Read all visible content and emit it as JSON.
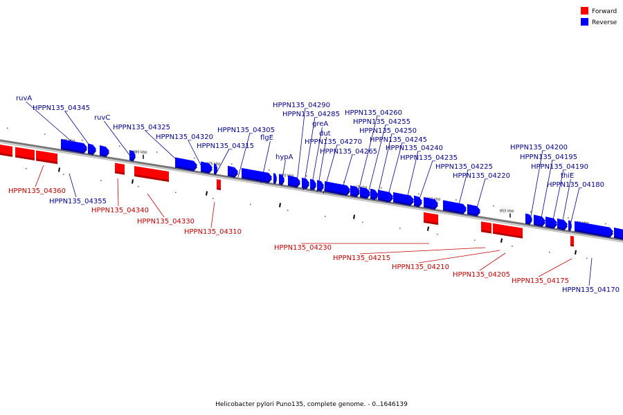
{
  "title": "Helicobacter pylori Puno135, complete genome. - 0..1646139",
  "colors": {
    "forward": "#ff0000",
    "forward_dark": "#b00000",
    "reverse": "#0000ff",
    "reverse_dark": "#0000a8",
    "forward_label": "#c00000",
    "reverse_label": "#00008b",
    "backbone": "#777777"
  },
  "legend": [
    {
      "label": "Forward",
      "strand": "forward"
    },
    {
      "label": "Reverse",
      "strand": "reverse"
    }
  ],
  "scale_labels": [
    "885 kbp",
    "880 kbp",
    "875 kbp",
    "870 kbp",
    "865 kbp",
    "860 kbp",
    "855 kbp",
    "850 kbp"
  ],
  "genes": [
    {
      "strand": "forward",
      "label": ""
    },
    {
      "strand": "forward",
      "label": ""
    },
    {
      "strand": "forward",
      "label": "HPPN135_04360"
    },
    {
      "strand": "reverse",
      "label": "ruvA"
    },
    {
      "strand": "reverse",
      "label": "HPPN135_04345"
    },
    {
      "strand": "reverse",
      "label": "HPPN135_04355"
    },
    {
      "strand": "reverse",
      "label": "ruvC"
    },
    {
      "strand": "forward",
      "label": "HPPN135_04340"
    },
    {
      "strand": "reverse",
      "label": "HPPN135_04325"
    },
    {
      "strand": "forward",
      "label": "HPPN135_04330"
    },
    {
      "strand": "reverse",
      "label": "HPPN135_04320"
    },
    {
      "strand": "reverse",
      "label": "HPPN135_04315"
    },
    {
      "strand": "reverse",
      "label": ""
    },
    {
      "strand": "forward",
      "label": "HPPN135_04310"
    },
    {
      "strand": "reverse",
      "label": "HPPN135_04305"
    },
    {
      "strand": "reverse",
      "label": "flgE"
    },
    {
      "strand": "reverse",
      "label": "hypA"
    },
    {
      "strand": "reverse",
      "label": "HPPN135_04290"
    },
    {
      "strand": "reverse",
      "label": "HPPN135_04285"
    },
    {
      "strand": "reverse",
      "label": "greA"
    },
    {
      "strand": "reverse",
      "label": "dut"
    },
    {
      "strand": "reverse",
      "label": "HPPN135_04270"
    },
    {
      "strand": "reverse",
      "label": "HPPN135_04265"
    },
    {
      "strand": "reverse",
      "label": "HPPN135_04260"
    },
    {
      "strand": "reverse",
      "label": "HPPN135_04255"
    },
    {
      "strand": "reverse",
      "label": "HPPN135_04250"
    },
    {
      "strand": "reverse",
      "label": "HPPN135_04245"
    },
    {
      "strand": "reverse",
      "label": "HPPN135_04240"
    },
    {
      "strand": "forward",
      "label": "HPPN135_04230"
    },
    {
      "strand": "reverse",
      "label": "HPPN135_04235"
    },
    {
      "strand": "reverse",
      "label": "HPPN135_04225"
    },
    {
      "strand": "reverse",
      "label": "HPPN135_04220"
    },
    {
      "strand": "forward",
      "label": "HPPN135_04215"
    },
    {
      "strand": "forward",
      "label": "HPPN135_04210"
    },
    {
      "strand": "forward",
      "label": "HPPN135_04205"
    },
    {
      "strand": "reverse",
      "label": "HPPN135_04200"
    },
    {
      "strand": "reverse",
      "label": "HPPN135_04195"
    },
    {
      "strand": "reverse",
      "label": "HPPN135_04190"
    },
    {
      "strand": "reverse",
      "label": "thiE"
    },
    {
      "strand": "reverse",
      "label": "HPPN135_04180"
    },
    {
      "strand": "forward",
      "label": "HPPN135_04175"
    },
    {
      "strand": "reverse",
      "label": "HPPN135_04170"
    },
    {
      "strand": "reverse",
      "label": ""
    }
  ]
}
